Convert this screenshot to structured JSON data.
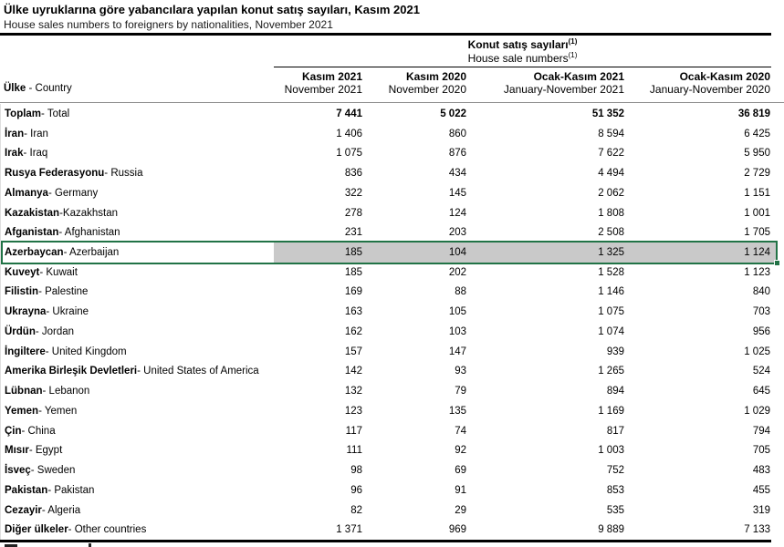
{
  "title": "Ülke uyruklarına göre yabancılara yapılan konut satış sayıları, Kasım 2021",
  "subtitle": "House sales numbers to foreigners by nationalities, November 2021",
  "colors": {
    "selection_border": "#217346",
    "selection_fill": "#c9c9c9",
    "header_rule": "#8c8c8c"
  },
  "table": {
    "group_header": {
      "tr": "Konut satış sayıları",
      "en": "House sale numbers",
      "footnote_mark": "(1)"
    },
    "row_header": {
      "tr": "Ülke",
      "en": " - Country"
    },
    "columns": [
      {
        "tr": "Kasım 2021",
        "en": "November 2021"
      },
      {
        "tr": "Kasım 2020",
        "en": "November 2020"
      },
      {
        "tr": "Ocak-Kasım 2021",
        "en": "January-November 2021"
      },
      {
        "tr": "Ocak-Kasım 2020",
        "en": "January-November 2020"
      }
    ],
    "rows": [
      {
        "tr": "Toplam",
        "en": " - Total",
        "values": [
          "7 441",
          "5 022",
          "51 352",
          "36 819"
        ],
        "bold_values": true
      },
      {
        "tr": "İran",
        "en": " - Iran",
        "values": [
          "1 406",
          "860",
          "8 594",
          "6 425"
        ]
      },
      {
        "tr": "Irak",
        "en": " - Iraq",
        "values": [
          "1 075",
          "876",
          "7 622",
          "5 950"
        ]
      },
      {
        "tr": "Rusya Federasyonu",
        "en": " - Russia",
        "values": [
          "836",
          "434",
          "4 494",
          "2 729"
        ]
      },
      {
        "tr": "Almanya",
        "en": " - Germany",
        "values": [
          "322",
          "145",
          "2 062",
          "1 151"
        ]
      },
      {
        "tr": "Kazakistan",
        "en": " -Kazakhstan",
        "values": [
          "278",
          "124",
          "1 808",
          "1 001"
        ]
      },
      {
        "tr": "Afganistan",
        "en": " - Afghanistan",
        "values": [
          "231",
          "203",
          "2 508",
          "1 705"
        ]
      },
      {
        "tr": "Azerbaycan",
        "en": " - Azerbaijan",
        "values": [
          "185",
          "104",
          "1 325",
          "1 124"
        ],
        "highlighted": true
      },
      {
        "tr": "Kuveyt",
        "en": " - Kuwait",
        "values": [
          "185",
          "202",
          "1 528",
          "1 123"
        ]
      },
      {
        "tr": "Filistin",
        "en": " - Palestine",
        "values": [
          "169",
          "88",
          "1 146",
          "840"
        ]
      },
      {
        "tr": "Ukrayna",
        "en": " - Ukraine",
        "values": [
          "163",
          "105",
          "1 075",
          "703"
        ]
      },
      {
        "tr": "Ürdün",
        "en": " - Jordan",
        "values": [
          "162",
          "103",
          "1 074",
          "956"
        ]
      },
      {
        "tr": "İngiltere",
        "en": " - United Kingdom",
        "values": [
          "157",
          "147",
          "939",
          "1 025"
        ]
      },
      {
        "tr": "Amerika Birleşik Devletleri",
        "en": " - United States of America",
        "values": [
          "142",
          "93",
          "1 265",
          "524"
        ]
      },
      {
        "tr": "Lübnan",
        "en": " - Lebanon",
        "values": [
          "132",
          "79",
          "894",
          "645"
        ]
      },
      {
        "tr": "Yemen",
        "en": " - Yemen",
        "values": [
          "123",
          "135",
          "1 169",
          "1 029"
        ]
      },
      {
        "tr": "Çin",
        "en": " - China",
        "values": [
          "117",
          "74",
          "817",
          "794"
        ]
      },
      {
        "tr": "Mısır",
        "en": " - Egypt",
        "values": [
          "111",
          "92",
          "1 003",
          "705"
        ]
      },
      {
        "tr": "İsveç",
        "en": " - Sweden",
        "values": [
          "98",
          "69",
          "752",
          "483"
        ]
      },
      {
        "tr": "Pakistan",
        "en": " - Pakistan",
        "values": [
          "96",
          "91",
          "853",
          "455"
        ]
      },
      {
        "tr": "Cezayir",
        "en": " - Algeria",
        "values": [
          "82",
          "29",
          "535",
          "319"
        ]
      },
      {
        "tr": "Diğer ülkeler",
        "en": " - Other countries",
        "values": [
          "1 371",
          "969",
          "9 889",
          "7 133"
        ]
      }
    ]
  }
}
